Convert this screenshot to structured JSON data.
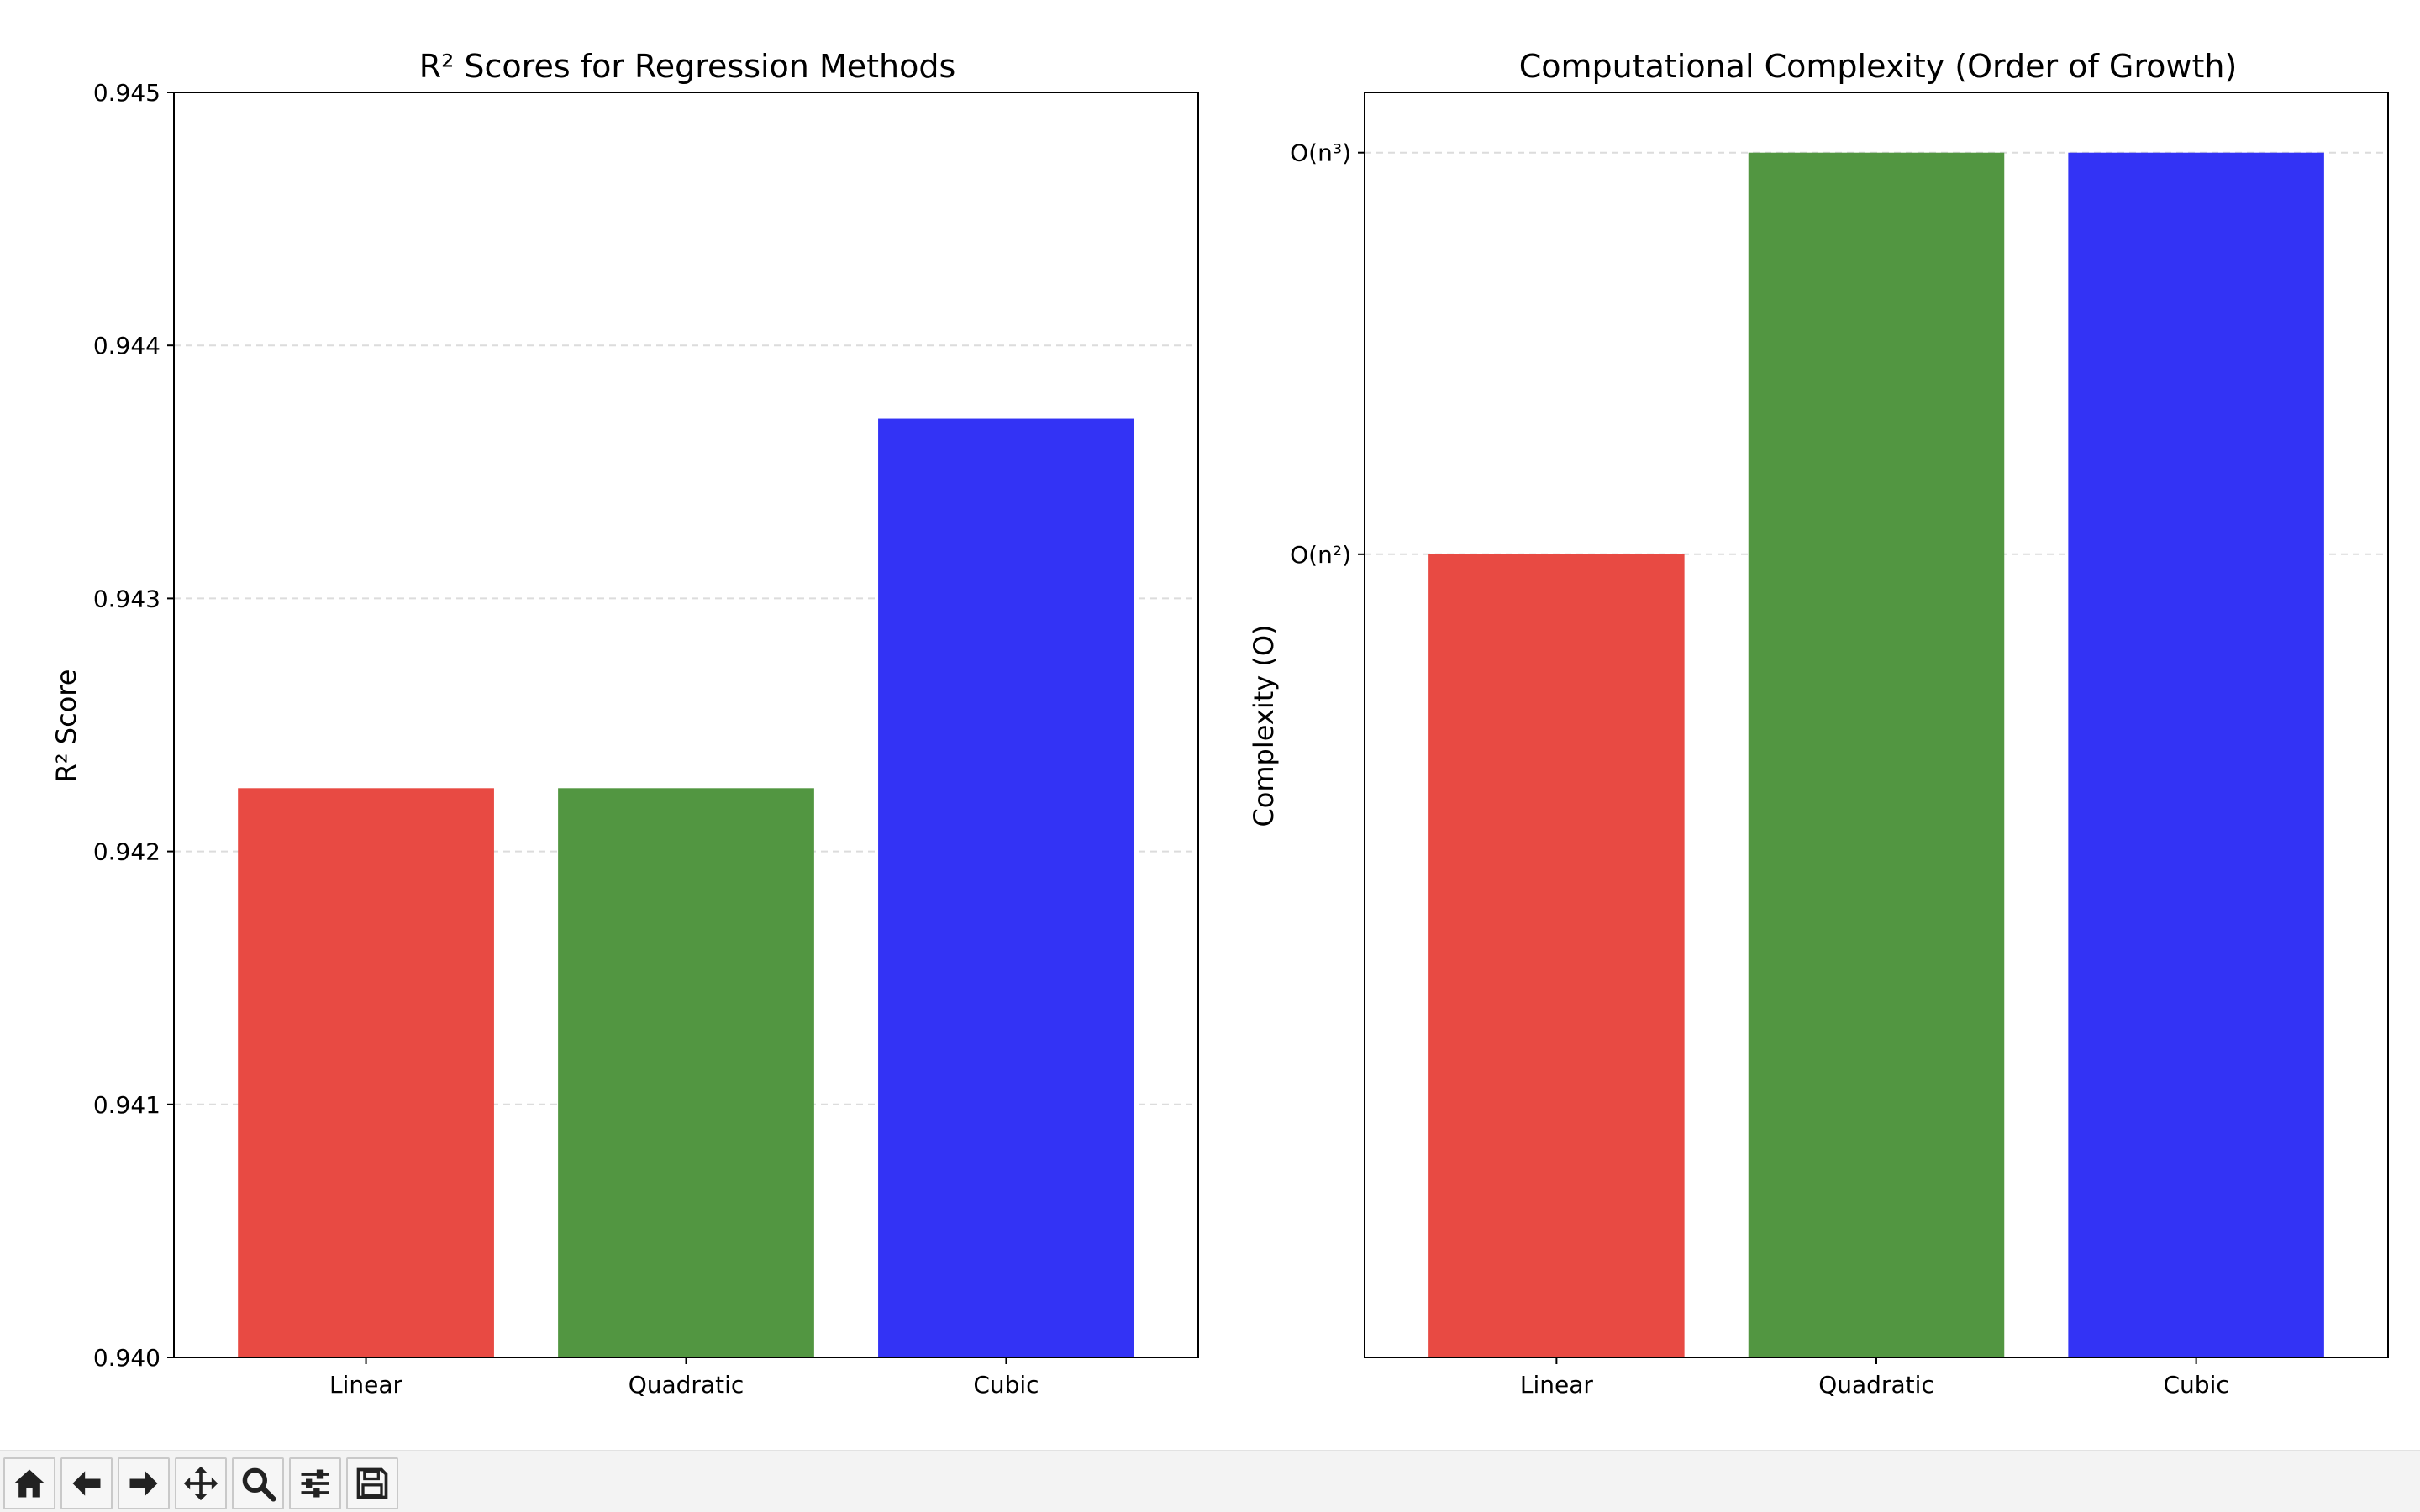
{
  "chart_data": [
    {
      "type": "bar",
      "title": "R² Scores for Regression Methods",
      "xlabel": "",
      "ylabel": "R² Score",
      "categories": [
        "Linear",
        "Quadratic",
        "Cubic"
      ],
      "values": [
        0.94225,
        0.94225,
        0.94371
      ],
      "colors": [
        "#e84a43",
        "#529641",
        "#3333f5"
      ],
      "ylim": [
        0.94,
        0.945
      ],
      "yticks": [
        0.94,
        0.941,
        0.942,
        0.943,
        0.944,
        0.945
      ],
      "ytick_labels": [
        "0.940",
        "0.941",
        "0.942",
        "0.943",
        "0.944",
        "0.945"
      ],
      "grid": "y-dashed"
    },
    {
      "type": "bar",
      "title": "Computational Complexity (Order of Growth)",
      "xlabel": "",
      "ylabel": "Complexity (O)",
      "categories": [
        "Linear",
        "Quadratic",
        "Cubic"
      ],
      "values": [
        2,
        3,
        3
      ],
      "colors": [
        "#e84a43",
        "#529641",
        "#3333f5"
      ],
      "ylim": [
        0,
        3.15
      ],
      "yticks": [
        2,
        3
      ],
      "ytick_labels": [
        "O(n²)",
        "O(n³)"
      ],
      "grid": "y-dashed"
    }
  ],
  "toolbar": {
    "buttons": [
      {
        "name": "home-button",
        "icon": "home-icon"
      },
      {
        "name": "back-button",
        "icon": "arrow-left-icon"
      },
      {
        "name": "forward-button",
        "icon": "arrow-right-icon"
      },
      {
        "name": "pan-button",
        "icon": "move-icon"
      },
      {
        "name": "zoom-button",
        "icon": "zoom-icon"
      },
      {
        "name": "configure-subplots-button",
        "icon": "sliders-icon"
      },
      {
        "name": "save-button",
        "icon": "floppy-disk-icon"
      }
    ]
  }
}
